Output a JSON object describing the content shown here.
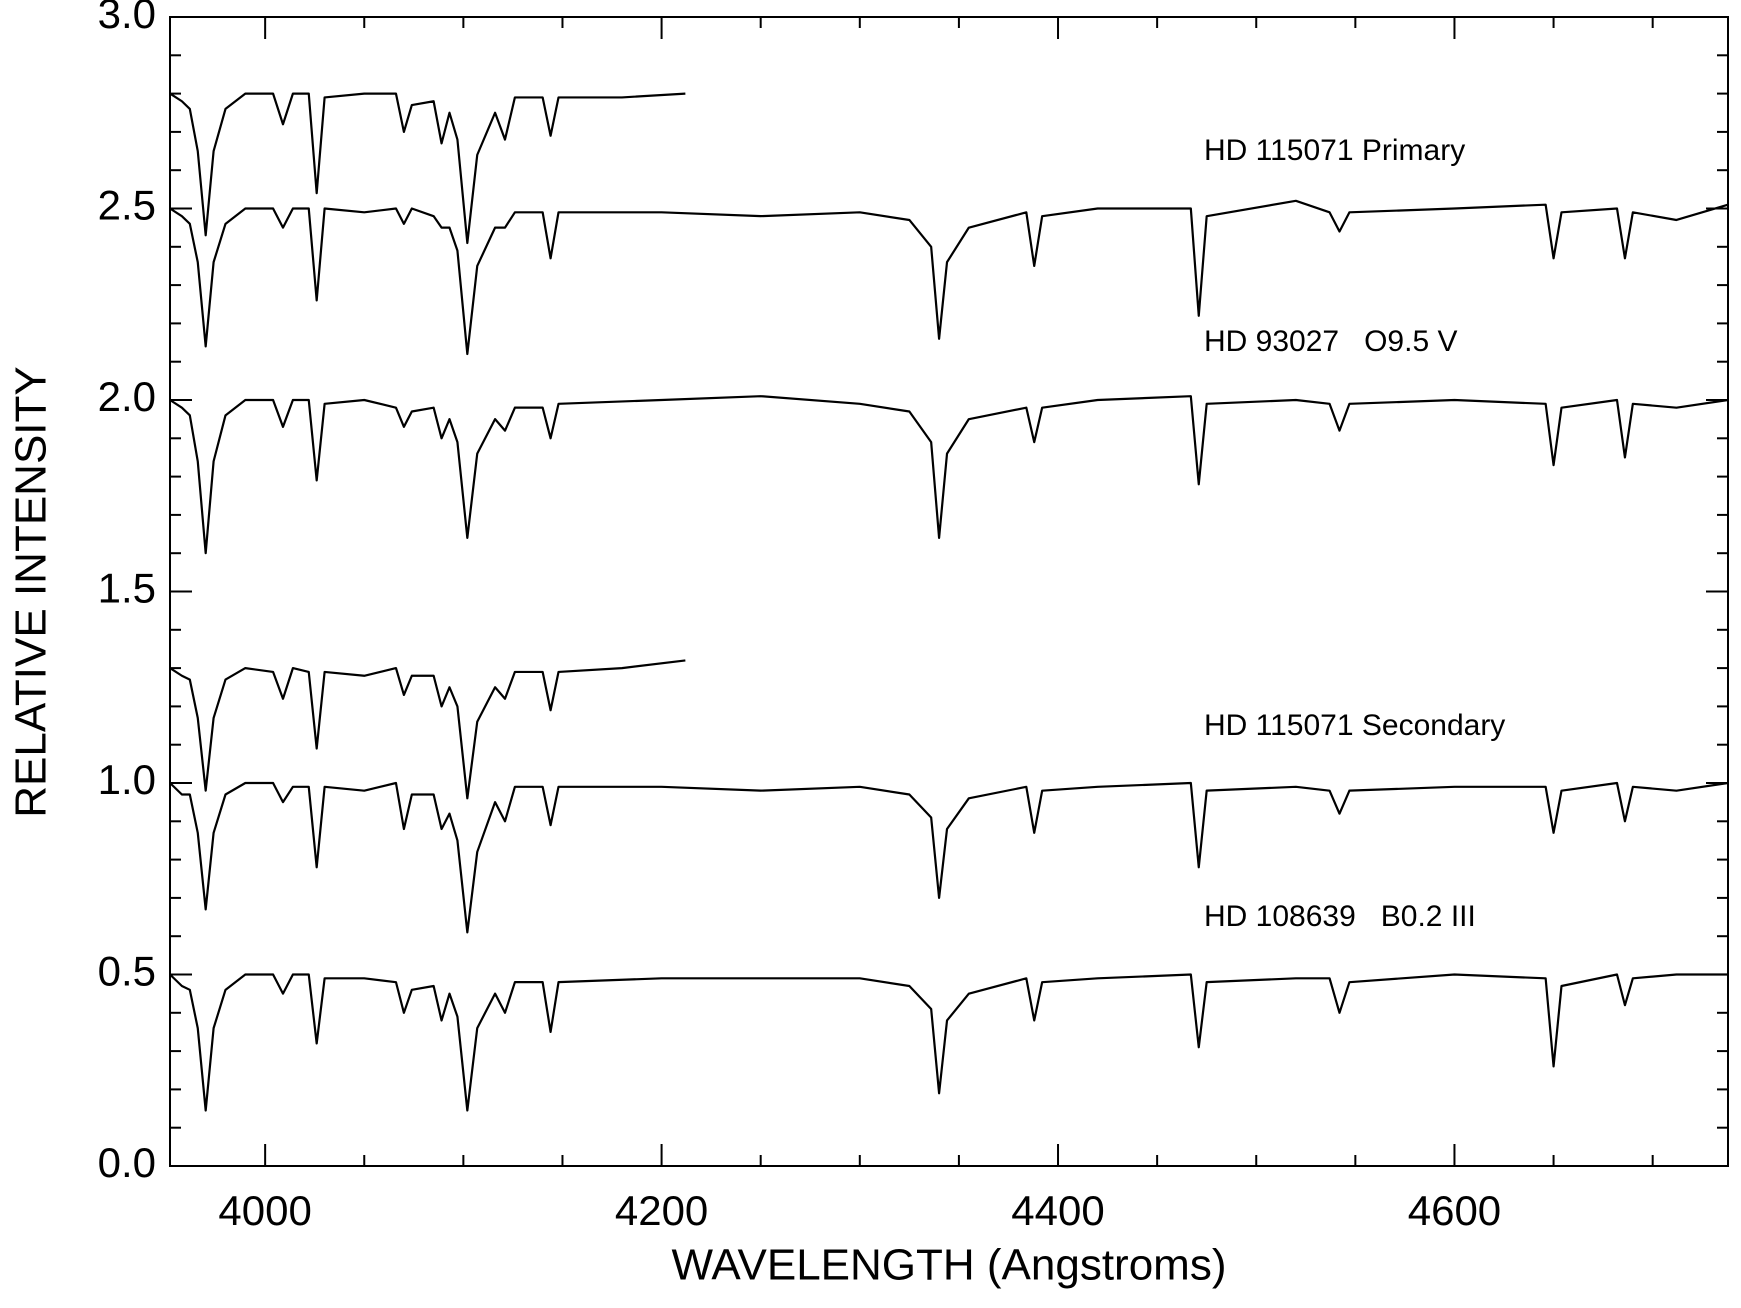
{
  "chart_data": {
    "type": "line",
    "xlabel": "WAVELENGTH (Angstroms)",
    "ylabel": "RELATIVE INTENSITY",
    "xlim": [
      3952,
      4738
    ],
    "ylim": [
      0,
      3
    ],
    "xticks": [
      4000,
      4200,
      4400,
      4600
    ],
    "yticks": [
      {
        "value": 0,
        "label": "0.0"
      },
      0.5,
      {
        "value": 1,
        "label": "1.0"
      },
      1.5,
      {
        "value": 2,
        "label": "2.0"
      },
      2.5,
      {
        "value": 3,
        "label": "3.0"
      }
    ],
    "xminorticks": [
      4050,
      4100,
      4150,
      4250,
      4300,
      4350,
      4450,
      4500,
      4550,
      4650,
      4700
    ],
    "yminorticks": [
      0.1,
      0.2,
      0.3,
      0.4,
      0.6,
      0.7,
      0.8,
      0.9,
      1.1,
      1.2,
      1.3,
      1.4,
      1.6,
      1.7,
      1.8,
      1.9,
      2.1,
      2.2,
      2.3,
      2.4,
      2.6,
      2.7,
      2.8,
      2.9
    ],
    "annotations": [
      "HD 115071 Primary",
      "HD 93027   O9.5 V",
      "HD 115071 Secondary",
      "HD 108639   B0.2 III"
    ],
    "series": [
      {
        "color": "#000000",
        "x": [
          3952,
          3958,
          3962,
          3966,
          3970,
          3974,
          3980,
          3990,
          4004,
          4009,
          4014,
          4022,
          4026,
          4030,
          4050,
          4066,
          4070,
          4074,
          4085,
          4089,
          4093,
          4097,
          4102,
          4107,
          4116,
          4121,
          4126,
          4140,
          4144,
          4148,
          4180,
          4212
        ],
        "values": [
          2.8,
          2.78,
          2.76,
          2.65,
          2.43,
          2.65,
          2.76,
          2.8,
          2.8,
          2.72,
          2.8,
          2.8,
          2.54,
          2.79,
          2.8,
          2.8,
          2.7,
          2.77,
          2.78,
          2.67,
          2.75,
          2.68,
          2.41,
          2.64,
          2.75,
          2.68,
          2.79,
          2.79,
          2.69,
          2.79,
          2.79,
          2.8
        ]
      },
      {
        "color": "#000000",
        "x": [
          3952,
          3958,
          3962,
          3966,
          3970,
          3974,
          3980,
          3990,
          4004,
          4009,
          4014,
          4022,
          4026,
          4030,
          4050,
          4066,
          4070,
          4074,
          4085,
          4089,
          4093,
          4097,
          4102,
          4107,
          4116,
          4121,
          4126,
          4140,
          4144,
          4148,
          4200,
          4250,
          4300,
          4325,
          4336,
          4340,
          4344,
          4355,
          4384,
          4388,
          4392,
          4420,
          4467,
          4471,
          4475,
          4520,
          4537,
          4542,
          4547,
          4600,
          4646,
          4650,
          4654,
          4682,
          4686,
          4690,
          4712,
          4738
        ],
        "values": [
          2.5,
          2.48,
          2.46,
          2.36,
          2.14,
          2.36,
          2.46,
          2.5,
          2.5,
          2.45,
          2.5,
          2.5,
          2.26,
          2.5,
          2.49,
          2.5,
          2.46,
          2.5,
          2.48,
          2.45,
          2.45,
          2.39,
          2.12,
          2.35,
          2.45,
          2.45,
          2.49,
          2.49,
          2.37,
          2.49,
          2.49,
          2.48,
          2.49,
          2.47,
          2.4,
          2.16,
          2.36,
          2.45,
          2.49,
          2.35,
          2.48,
          2.5,
          2.5,
          2.22,
          2.48,
          2.52,
          2.49,
          2.44,
          2.49,
          2.5,
          2.51,
          2.37,
          2.49,
          2.5,
          2.37,
          2.49,
          2.47,
          2.51
        ]
      },
      {
        "color": "#000000",
        "x": [
          3952,
          3958,
          3962,
          3966,
          3970,
          3974,
          3980,
          3990,
          4004,
          4009,
          4014,
          4022,
          4026,
          4030,
          4050,
          4066,
          4070,
          4074,
          4085,
          4089,
          4093,
          4097,
          4102,
          4107,
          4116,
          4121,
          4126,
          4140,
          4144,
          4148,
          4200,
          4250,
          4300,
          4325,
          4336,
          4340,
          4344,
          4355,
          4384,
          4388,
          4392,
          4420,
          4467,
          4471,
          4475,
          4520,
          4537,
          4542,
          4547,
          4600,
          4646,
          4650,
          4654,
          4682,
          4686,
          4690,
          4712,
          4738
        ],
        "values": [
          2.0,
          1.98,
          1.96,
          1.84,
          1.6,
          1.84,
          1.96,
          2.0,
          2.0,
          1.93,
          2.0,
          2.0,
          1.79,
          1.99,
          2.0,
          1.98,
          1.93,
          1.97,
          1.98,
          1.9,
          1.95,
          1.89,
          1.64,
          1.86,
          1.95,
          1.92,
          1.98,
          1.98,
          1.9,
          1.99,
          2.0,
          2.01,
          1.99,
          1.97,
          1.89,
          1.64,
          1.86,
          1.95,
          1.98,
          1.89,
          1.98,
          2.0,
          2.01,
          1.78,
          1.99,
          2.0,
          1.99,
          1.92,
          1.99,
          2.0,
          1.99,
          1.83,
          1.98,
          2.0,
          1.85,
          1.99,
          1.98,
          2.0
        ]
      },
      {
        "color": "#000000",
        "x": [
          3952,
          3958,
          3962,
          3966,
          3970,
          3974,
          3980,
          3990,
          4004,
          4009,
          4014,
          4022,
          4026,
          4030,
          4050,
          4066,
          4070,
          4074,
          4085,
          4089,
          4093,
          4097,
          4102,
          4107,
          4116,
          4121,
          4126,
          4140,
          4144,
          4148,
          4180,
          4212
        ],
        "values": [
          1.3,
          1.28,
          1.27,
          1.17,
          0.98,
          1.17,
          1.27,
          1.3,
          1.29,
          1.22,
          1.3,
          1.29,
          1.09,
          1.29,
          1.28,
          1.3,
          1.23,
          1.28,
          1.28,
          1.2,
          1.25,
          1.2,
          0.96,
          1.16,
          1.25,
          1.22,
          1.29,
          1.29,
          1.19,
          1.29,
          1.3,
          1.32
        ]
      },
      {
        "color": "#000000",
        "x": [
          3952,
          3958,
          3962,
          3966,
          3970,
          3974,
          3980,
          3990,
          4004,
          4009,
          4014,
          4022,
          4026,
          4030,
          4050,
          4066,
          4070,
          4074,
          4085,
          4089,
          4093,
          4097,
          4102,
          4107,
          4116,
          4121,
          4126,
          4140,
          4144,
          4148,
          4200,
          4250,
          4300,
          4325,
          4336,
          4340,
          4344,
          4355,
          4384,
          4388,
          4392,
          4420,
          4467,
          4471,
          4475,
          4520,
          4537,
          4542,
          4547,
          4600,
          4646,
          4650,
          4654,
          4682,
          4686,
          4690,
          4712,
          4738
        ],
        "values": [
          1.0,
          0.97,
          0.97,
          0.87,
          0.67,
          0.87,
          0.97,
          1.0,
          1.0,
          0.95,
          0.99,
          0.99,
          0.78,
          0.99,
          0.98,
          1.0,
          0.88,
          0.97,
          0.97,
          0.88,
          0.92,
          0.85,
          0.61,
          0.82,
          0.95,
          0.9,
          0.99,
          0.99,
          0.89,
          0.99,
          0.99,
          0.98,
          0.99,
          0.97,
          0.91,
          0.7,
          0.88,
          0.96,
          0.99,
          0.87,
          0.98,
          0.99,
          1.0,
          0.78,
          0.98,
          0.99,
          0.98,
          0.92,
          0.98,
          0.99,
          0.99,
          0.87,
          0.98,
          1.0,
          0.9,
          0.99,
          0.98,
          1.0
        ]
      },
      {
        "color": "#000000",
        "x": [
          3952,
          3958,
          3962,
          3966,
          3970,
          3974,
          3980,
          3990,
          4004,
          4009,
          4014,
          4022,
          4026,
          4030,
          4050,
          4066,
          4070,
          4074,
          4085,
          4089,
          4093,
          4097,
          4102,
          4107,
          4116,
          4121,
          4126,
          4140,
          4144,
          4148,
          4200,
          4250,
          4300,
          4325,
          4336,
          4340,
          4344,
          4355,
          4384,
          4388,
          4392,
          4420,
          4467,
          4471,
          4475,
          4520,
          4537,
          4542,
          4547,
          4600,
          4646,
          4650,
          4654,
          4682,
          4686,
          4690,
          4712,
          4738
        ],
        "values": [
          0.5,
          0.47,
          0.46,
          0.36,
          0.145,
          0.36,
          0.46,
          0.5,
          0.5,
          0.45,
          0.5,
          0.5,
          0.32,
          0.49,
          0.49,
          0.48,
          0.4,
          0.46,
          0.47,
          0.38,
          0.45,
          0.39,
          0.145,
          0.36,
          0.45,
          0.4,
          0.48,
          0.48,
          0.35,
          0.48,
          0.49,
          0.49,
          0.49,
          0.47,
          0.41,
          0.19,
          0.38,
          0.45,
          0.49,
          0.38,
          0.48,
          0.49,
          0.5,
          0.31,
          0.48,
          0.49,
          0.49,
          0.4,
          0.48,
          0.5,
          0.49,
          0.26,
          0.47,
          0.5,
          0.42,
          0.49,
          0.5,
          0.5
        ]
      }
    ]
  }
}
